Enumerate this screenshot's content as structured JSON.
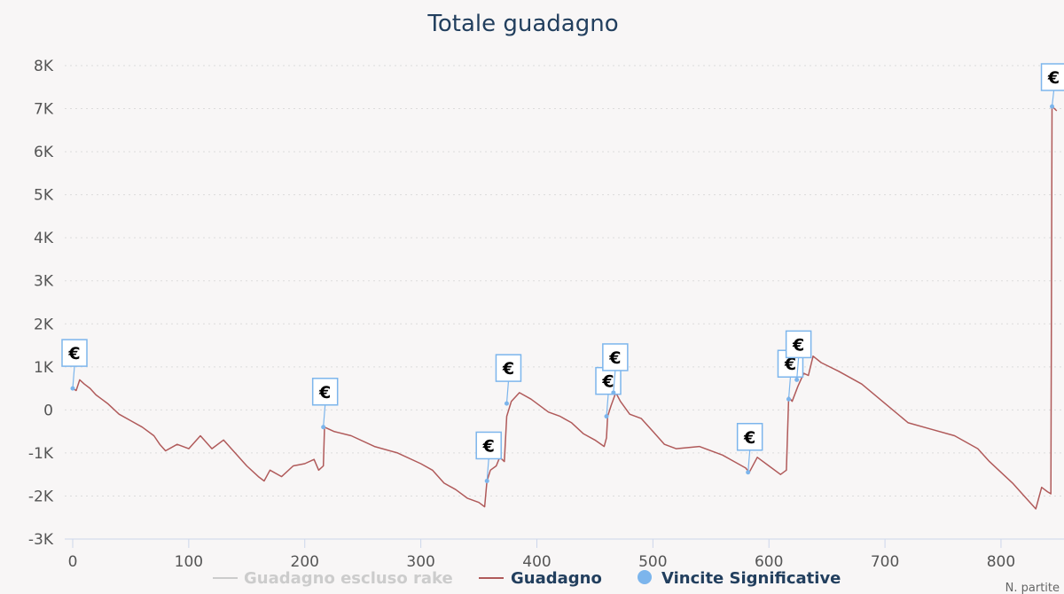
{
  "chart_data": {
    "type": "line",
    "title": "Totale guadagno",
    "xlabel": "N. partite",
    "ylabel": "",
    "xlim": [
      -5,
      850
    ],
    "ylim": [
      -3000,
      8000
    ],
    "x_ticks": [
      0,
      100,
      200,
      300,
      400,
      500,
      600,
      700,
      800
    ],
    "y_ticks": [
      -3000,
      -2000,
      -1000,
      0,
      1000,
      2000,
      3000,
      4000,
      5000,
      6000,
      7000,
      8000
    ],
    "y_tick_labels": [
      "-3K",
      "-2K",
      "-1K",
      "0",
      "1K",
      "2K",
      "3K",
      "4K",
      "5K",
      "6K",
      "7K",
      "8K"
    ],
    "x_tick_labels": [
      "0",
      "100",
      "200",
      "300",
      "400",
      "500",
      "600",
      "700",
      "800"
    ],
    "grid": true,
    "legend_position": "bottom",
    "legend": [
      {
        "name": "Guadagno escluso rake",
        "color": "#cccccc"
      },
      {
        "name": "Guadagno",
        "color": "#223f5e"
      },
      {
        "name": "Vincite Significative",
        "color": "#223f5e"
      }
    ],
    "series": [
      {
        "name": "Guadagno",
        "color": "#b05a5a",
        "points": [
          [
            0,
            500
          ],
          [
            3,
            450
          ],
          [
            6,
            700
          ],
          [
            10,
            600
          ],
          [
            15,
            500
          ],
          [
            20,
            350
          ],
          [
            25,
            250
          ],
          [
            30,
            150
          ],
          [
            40,
            -100
          ],
          [
            50,
            -250
          ],
          [
            60,
            -400
          ],
          [
            70,
            -600
          ],
          [
            75,
            -800
          ],
          [
            80,
            -950
          ],
          [
            90,
            -800
          ],
          [
            100,
            -900
          ],
          [
            110,
            -600
          ],
          [
            120,
            -900
          ],
          [
            130,
            -700
          ],
          [
            140,
            -1000
          ],
          [
            150,
            -1300
          ],
          [
            160,
            -1550
          ],
          [
            165,
            -1650
          ],
          [
            170,
            -1400
          ],
          [
            180,
            -1550
          ],
          [
            190,
            -1300
          ],
          [
            200,
            -1250
          ],
          [
            208,
            -1150
          ],
          [
            212,
            -1400
          ],
          [
            216,
            -1300
          ],
          [
            217,
            -400
          ],
          [
            225,
            -500
          ],
          [
            240,
            -600
          ],
          [
            260,
            -850
          ],
          [
            280,
            -1000
          ],
          [
            300,
            -1250
          ],
          [
            310,
            -1400
          ],
          [
            320,
            -1700
          ],
          [
            330,
            -1850
          ],
          [
            340,
            -2050
          ],
          [
            350,
            -2150
          ],
          [
            355,
            -2250
          ],
          [
            357,
            -1650
          ],
          [
            360,
            -1400
          ],
          [
            365,
            -1300
          ],
          [
            368,
            -1100
          ],
          [
            372,
            -1200
          ],
          [
            374,
            -150
          ],
          [
            378,
            200
          ],
          [
            385,
            400
          ],
          [
            395,
            250
          ],
          [
            410,
            -50
          ],
          [
            420,
            -150
          ],
          [
            430,
            -300
          ],
          [
            440,
            -550
          ],
          [
            450,
            -700
          ],
          [
            458,
            -850
          ],
          [
            460,
            -650
          ],
          [
            461,
            -150
          ],
          [
            464,
            100
          ],
          [
            468,
            400
          ],
          [
            472,
            200
          ],
          [
            480,
            -100
          ],
          [
            490,
            -200
          ],
          [
            500,
            -500
          ],
          [
            510,
            -800
          ],
          [
            520,
            -900
          ],
          [
            540,
            -850
          ],
          [
            560,
            -1050
          ],
          [
            570,
            -1200
          ],
          [
            580,
            -1350
          ],
          [
            583,
            -1450
          ],
          [
            590,
            -1100
          ],
          [
            600,
            -1300
          ],
          [
            610,
            -1500
          ],
          [
            615,
            -1400
          ],
          [
            617,
            300
          ],
          [
            620,
            200
          ],
          [
            625,
            550
          ],
          [
            630,
            850
          ],
          [
            634,
            800
          ],
          [
            638,
            1250
          ],
          [
            645,
            1100
          ],
          [
            660,
            900
          ],
          [
            680,
            600
          ],
          [
            700,
            150
          ],
          [
            720,
            -300
          ],
          [
            740,
            -450
          ],
          [
            760,
            -600
          ],
          [
            780,
            -900
          ],
          [
            790,
            -1200
          ],
          [
            800,
            -1450
          ],
          [
            810,
            -1700
          ],
          [
            820,
            -2000
          ],
          [
            830,
            -2300
          ],
          [
            835,
            -1800
          ],
          [
            840,
            -1900
          ],
          [
            843,
            -1950
          ],
          [
            844,
            7050
          ],
          [
            846,
            7000
          ],
          [
            848,
            6950
          ]
        ]
      },
      {
        "name": "Vincite Significative",
        "marker": "€",
        "color": "#7cb5ec",
        "points": [
          [
            0,
            500
          ],
          [
            216,
            -400
          ],
          [
            357,
            -1650
          ],
          [
            374,
            150
          ],
          [
            460,
            -150
          ],
          [
            466,
            400
          ],
          [
            582,
            -1450
          ],
          [
            617,
            250
          ],
          [
            624,
            700
          ],
          [
            844,
            7050
          ]
        ]
      }
    ]
  }
}
